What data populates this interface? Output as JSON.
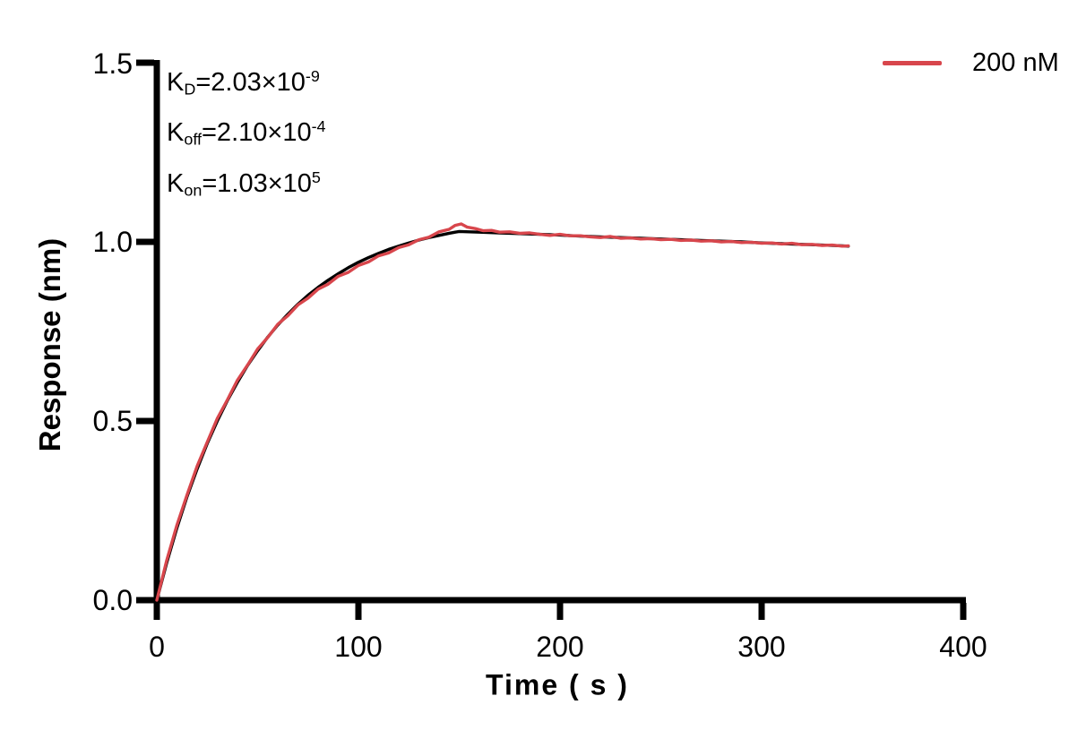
{
  "figure": {
    "background": "#ffffff"
  },
  "chart_data": {
    "type": "line",
    "title": "",
    "xlabel": "Time ( s )",
    "ylabel": "Response (nm)",
    "xlim": [
      0,
      400
    ],
    "ylim": [
      0,
      1.5
    ],
    "grid": false,
    "axis_color": "#000000",
    "x_ticks": [
      0,
      100,
      200,
      300,
      400
    ],
    "x_tick_labels": [
      "0",
      "100",
      "200",
      "300",
      "400"
    ],
    "y_ticks": [
      0,
      0.5,
      1.0,
      1.5
    ],
    "y_tick_labels": [
      "0.0",
      "0.5",
      "1.0",
      "1.5"
    ],
    "legend": {
      "label": "200 nM",
      "color": "#d8464c",
      "position": "top-right"
    },
    "annotations": [
      {
        "base": "K",
        "sub": "D",
        "mid": "=2.03×10",
        "sup": "-9"
      },
      {
        "base": "K",
        "sub": "off",
        "mid": "=2.10×10",
        "sup": "-4"
      },
      {
        "base": "K",
        "sub": "on",
        "mid": "=1.03×10",
        "sup": "5"
      }
    ],
    "kinetics_phases": {
      "association_end_s": 150,
      "curve_end_s": 343
    },
    "series": [
      {
        "name": "fit",
        "color": "#000000",
        "width": 3.4,
        "points": [
          [
            0,
            0.0
          ],
          [
            5,
            0.106
          ],
          [
            10,
            0.202
          ],
          [
            15,
            0.289
          ],
          [
            20,
            0.366
          ],
          [
            25,
            0.437
          ],
          [
            30,
            0.5
          ],
          [
            35,
            0.557
          ],
          [
            40,
            0.608
          ],
          [
            45,
            0.655
          ],
          [
            50,
            0.696
          ],
          [
            55,
            0.734
          ],
          [
            60,
            0.768
          ],
          [
            65,
            0.798
          ],
          [
            70,
            0.826
          ],
          [
            75,
            0.851
          ],
          [
            80,
            0.873
          ],
          [
            85,
            0.893
          ],
          [
            90,
            0.911
          ],
          [
            95,
            0.928
          ],
          [
            100,
            0.943
          ],
          [
            105,
            0.956
          ],
          [
            110,
            0.968
          ],
          [
            115,
            0.979
          ],
          [
            120,
            0.988
          ],
          [
            125,
            0.997
          ],
          [
            130,
            1.005
          ],
          [
            135,
            1.012
          ],
          [
            140,
            1.018
          ],
          [
            145,
            1.024
          ],
          [
            150,
            1.029
          ],
          [
            160,
            1.027
          ],
          [
            170,
            1.025
          ],
          [
            180,
            1.023
          ],
          [
            190,
            1.021
          ],
          [
            200,
            1.019
          ],
          [
            210,
            1.016
          ],
          [
            220,
            1.014
          ],
          [
            230,
            1.012
          ],
          [
            240,
            1.01
          ],
          [
            250,
            1.008
          ],
          [
            260,
            1.006
          ],
          [
            270,
            1.004
          ],
          [
            280,
            1.002
          ],
          [
            290,
            1.0
          ],
          [
            300,
            0.997
          ],
          [
            310,
            0.995
          ],
          [
            320,
            0.993
          ],
          [
            330,
            0.991
          ],
          [
            340,
            0.989
          ],
          [
            343,
            0.988
          ]
        ]
      },
      {
        "name": "200 nM",
        "color": "#d8464c",
        "width": 3.4,
        "points": [
          [
            0,
            0.0
          ],
          [
            5,
            0.113
          ],
          [
            10,
            0.21
          ],
          [
            15,
            0.294
          ],
          [
            20,
            0.374
          ],
          [
            25,
            0.441
          ],
          [
            30,
            0.507
          ],
          [
            35,
            0.559
          ],
          [
            40,
            0.614
          ],
          [
            45,
            0.656
          ],
          [
            50,
            0.701
          ],
          [
            55,
            0.733
          ],
          [
            60,
            0.77
          ],
          [
            65,
            0.794
          ],
          [
            70,
            0.824
          ],
          [
            75,
            0.843
          ],
          [
            80,
            0.868
          ],
          [
            85,
            0.882
          ],
          [
            90,
            0.904
          ],
          [
            95,
            0.915
          ],
          [
            100,
            0.934
          ],
          [
            105,
            0.944
          ],
          [
            110,
            0.961
          ],
          [
            115,
            0.969
          ],
          [
            120,
            0.984
          ],
          [
            125,
            0.992
          ],
          [
            130,
            1.006
          ],
          [
            135,
            1.013
          ],
          [
            140,
            1.028
          ],
          [
            145,
            1.035
          ],
          [
            148,
            1.046
          ],
          [
            151,
            1.05
          ],
          [
            154,
            1.041
          ],
          [
            158,
            1.037
          ],
          [
            162,
            1.031
          ],
          [
            166,
            1.032
          ],
          [
            170,
            1.027
          ],
          [
            175,
            1.028
          ],
          [
            180,
            1.024
          ],
          [
            185,
            1.025
          ],
          [
            190,
            1.021
          ],
          [
            195,
            1.018
          ],
          [
            200,
            1.021
          ],
          [
            205,
            1.017
          ],
          [
            210,
            1.017
          ],
          [
            215,
            1.014
          ],
          [
            220,
            1.012
          ],
          [
            225,
            1.015
          ],
          [
            230,
            1.01
          ],
          [
            235,
            1.011
          ],
          [
            240,
            1.008
          ],
          [
            245,
            1.009
          ],
          [
            250,
            1.006
          ],
          [
            255,
            1.007
          ],
          [
            260,
            1.004
          ],
          [
            265,
            1.005
          ],
          [
            270,
            1.002
          ],
          [
            275,
            1.003
          ],
          [
            280,
            1.0
          ],
          [
            285,
            1.001
          ],
          [
            290,
            0.998
          ],
          [
            295,
            0.999
          ],
          [
            300,
            0.996
          ],
          [
            305,
            0.997
          ],
          [
            310,
            0.994
          ],
          [
            315,
            0.996
          ],
          [
            320,
            0.992
          ],
          [
            325,
            0.993
          ],
          [
            330,
            0.99
          ],
          [
            335,
            0.991
          ],
          [
            340,
            0.988
          ],
          [
            343,
            0.989
          ]
        ]
      }
    ]
  }
}
